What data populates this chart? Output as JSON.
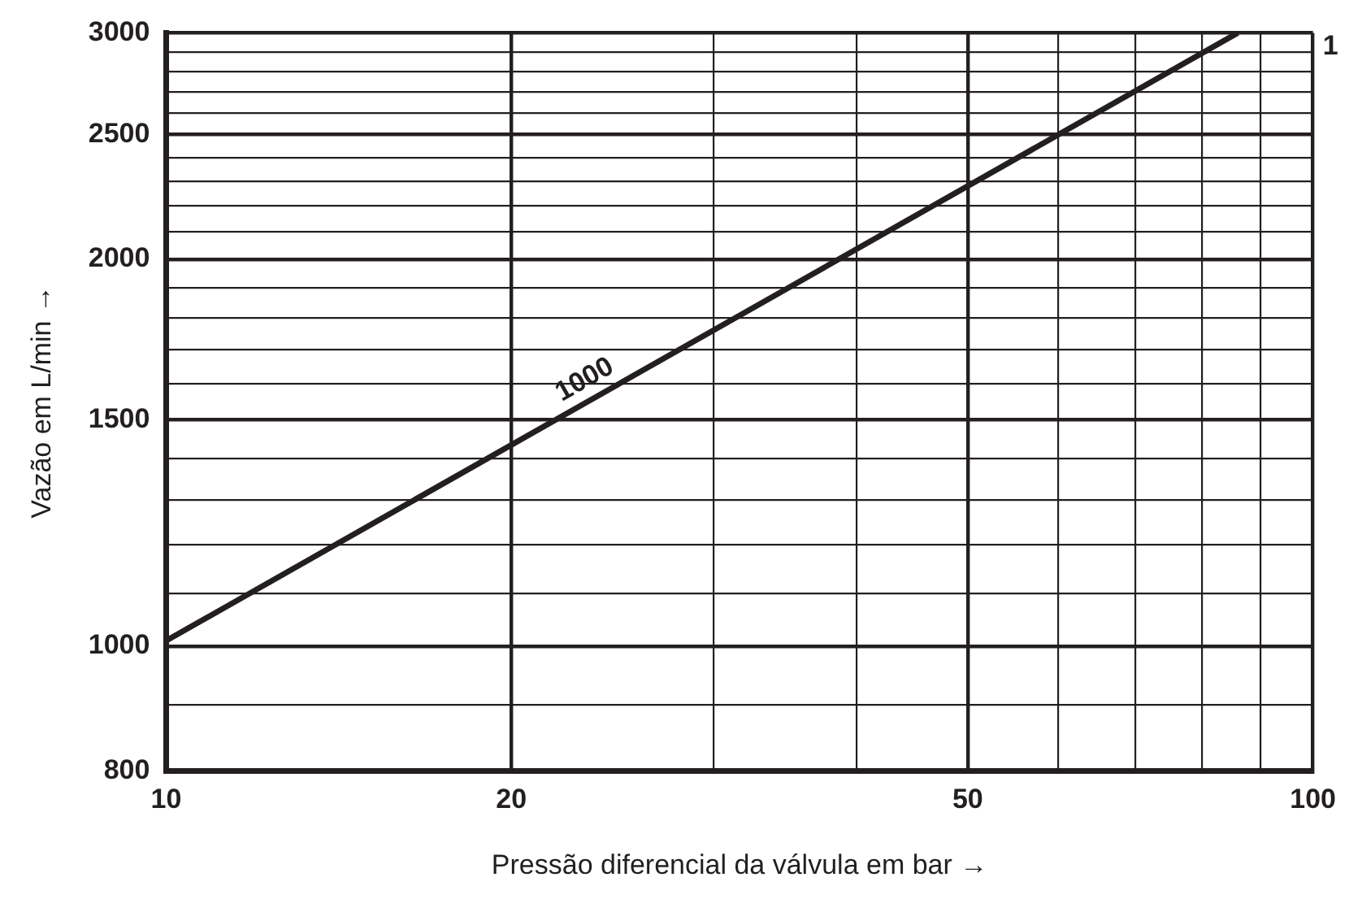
{
  "chart_data": {
    "type": "line",
    "xlabel": "Pressão diferencial da válvula em bar →",
    "ylabel": "Vazão em L/min →",
    "log": "xy",
    "grid": true,
    "legend": false,
    "marker": "none",
    "line_style": "solid",
    "xlim": [
      10,
      100
    ],
    "ylim": [
      800,
      3000
    ],
    "xticks": [
      10,
      20,
      {
        "value": 30,
        "label": null
      },
      {
        "value": 40,
        "label": null
      },
      50,
      {
        "value": 60,
        "label": null
      },
      {
        "value": 70,
        "label": null
      },
      {
        "value": 80,
        "label": null
      },
      {
        "value": 90,
        "label": null
      },
      100
    ],
    "yticks": [
      800,
      {
        "value": 900,
        "label": null
      },
      1000,
      {
        "value": 1100,
        "label": null
      },
      {
        "value": 1200,
        "label": null
      },
      {
        "value": 1300,
        "label": null
      },
      {
        "value": 1400,
        "label": null
      },
      1500,
      {
        "value": 1600,
        "label": null
      },
      {
        "value": 1700,
        "label": null
      },
      {
        "value": 1800,
        "label": null
      },
      {
        "value": 1900,
        "label": null
      },
      2000,
      {
        "value": 2100,
        "label": null
      },
      {
        "value": 2200,
        "label": null
      },
      {
        "value": 2300,
        "label": null
      },
      {
        "value": 2400,
        "label": null
      },
      2500,
      {
        "value": 2600,
        "label": null
      },
      {
        "value": 2700,
        "label": null
      },
      {
        "value": 2800,
        "label": null
      },
      {
        "value": 2900,
        "label": null
      },
      3000
    ],
    "x": [
      10,
      86
    ],
    "series": [
      {
        "name": "1000",
        "color": "#231f20",
        "values": [
          1010,
          3000
        ]
      }
    ],
    "annotations": [
      "1"
    ]
  }
}
